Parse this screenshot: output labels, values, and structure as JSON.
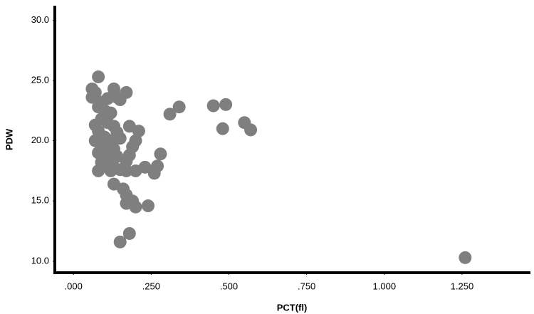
{
  "chart_data": {
    "type": "scatter",
    "x_label": "PCT(fl)",
    "y_label": "PDW",
    "color": "#7f7f7f",
    "xlim": [
      -0.06,
      1.47
    ],
    "ylim": [
      9.05,
      31.2
    ],
    "xticks": [
      {
        "value": 0,
        "label": ".000"
      },
      {
        "value": 0.25,
        "label": ".250"
      },
      {
        "value": 0.5,
        "label": ".500"
      },
      {
        "value": 0.75,
        "label": ".750"
      },
      {
        "value": 1,
        "label": "1.000"
      },
      {
        "value": 1.25,
        "label": "1.250"
      }
    ],
    "yticks": [
      {
        "value": 10,
        "label": "10.0"
      },
      {
        "value": 15,
        "label": "15.0"
      },
      {
        "value": 20,
        "label": "20.0"
      },
      {
        "value": 25,
        "label": "25.0"
      },
      {
        "value": 30,
        "label": "30.0"
      }
    ],
    "x": [
      0.08,
      0.06,
      0.07,
      0.13,
      0.17,
      0.06,
      0.09,
      0.11,
      0.15,
      0.14,
      0.08,
      0.1,
      0.12,
      0.09,
      0.07,
      0.11,
      0.13,
      0.14,
      0.08,
      0.1,
      0.12,
      0.15,
      0.07,
      0.09,
      0.11,
      0.13,
      0.08,
      0.1,
      0.12,
      0.14,
      0.09,
      0.11,
      0.13,
      0.08,
      0.12,
      0.15,
      0.17,
      0.18,
      0.19,
      0.2,
      0.21,
      0.18,
      0.2,
      0.23,
      0.26,
      0.27,
      0.28,
      0.17,
      0.13,
      0.16,
      0.17,
      0.19,
      0.17,
      0.2,
      0.24,
      0.15,
      0.18,
      0.31,
      0.34,
      0.45,
      0.49,
      0.48,
      0.55,
      0.57,
      1.26
    ],
    "y": [
      25.3,
      24.3,
      24.0,
      24.3,
      24.0,
      23.6,
      23.2,
      23.5,
      23.4,
      23.6,
      22.8,
      22.5,
      22.3,
      21.8,
      21.3,
      21.5,
      21.2,
      20.7,
      20.8,
      20.3,
      20.0,
      20.2,
      20.0,
      19.5,
      19.7,
      19.3,
      19.0,
      18.8,
      18.5,
      18.7,
      18.2,
      18.0,
      17.8,
      17.5,
      17.5,
      17.6,
      18.3,
      18.8,
      19.5,
      20.0,
      20.8,
      21.2,
      17.5,
      17.8,
      17.3,
      17.9,
      18.9,
      17.5,
      16.4,
      16.0,
      15.5,
      15.0,
      14.8,
      14.5,
      14.6,
      11.6,
      12.3,
      22.2,
      22.8,
      22.9,
      23.0,
      21.0,
      21.5,
      20.9,
      10.3
    ]
  }
}
